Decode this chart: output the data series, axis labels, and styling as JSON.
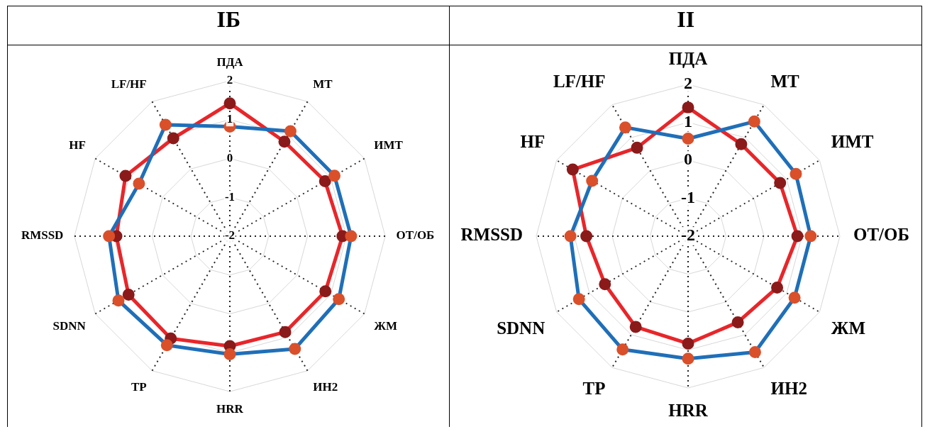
{
  "chart_data": [
    {
      "type": "radar",
      "title": "IБ",
      "categories": [
        "ПДА",
        "МТ",
        "ИМТ",
        "ОТ/ОБ",
        "ЖМ",
        "ИН2",
        "HRR",
        "ТР",
        "SDNN",
        "RMSSD",
        "HF",
        "LF/HF"
      ],
      "ylim": [
        -2,
        2
      ],
      "yticks": [
        -2,
        -1,
        0,
        1,
        2
      ],
      "grid": true,
      "legend": false,
      "marker": "circle",
      "series": [
        {
          "color": "#1f6fb8",
          "colors": [
            "#d9502a",
            "#d9502a",
            "#d9502a",
            "#d9502a",
            "#d9502a",
            "#d9502a",
            "#d9502a",
            "#d9502a",
            "#d9502a",
            "#d9502a",
            "#d9502a",
            "#d9502a"
          ],
          "values": [
            0.82,
            1.12,
            1.11,
            1.12,
            1.24,
            1.35,
            1.04,
            1.24,
            1.31,
            1.11,
            0.7,
            1.31
          ]
        },
        {
          "color": "#e8262a",
          "colors": [
            "#8b1a1a",
            "#8b1a1a",
            "#8b1a1a",
            "#8b1a1a",
            "#8b1a1a",
            "#8b1a1a",
            "#8b1a1a",
            "#8b1a1a",
            "#8b1a1a",
            "#8b1a1a",
            "#8b1a1a",
            "#8b1a1a"
          ],
          "values": [
            1.42,
            0.81,
            0.83,
            0.9,
            0.84,
            0.85,
            0.83,
            1.04,
            1.01,
            0.92,
            1.1,
            0.91
          ]
        }
      ]
    },
    {
      "type": "radar",
      "title": "II",
      "categories": [
        "ПДА",
        "МТ",
        "ИМТ",
        "ОТ/ОБ",
        "ЖМ",
        "ИН2",
        "HRR",
        "ТР",
        "SDNN",
        "RMSSD",
        "HF",
        "LF/HF"
      ],
      "ylim": [
        -2,
        2
      ],
      "yticks": [
        -2,
        -1,
        0,
        1,
        2
      ],
      "grid": true,
      "legend": false,
      "marker": "circle",
      "series": [
        {
          "color": "#1f6fb8",
          "colors": [
            "#d9502a",
            "#d9502a",
            "#d9502a",
            "#d9502a",
            "#d9502a",
            "#d9502a",
            "#d9502a",
            "#d9502a",
            "#d9502a",
            "#d9502a",
            "#d9502a",
            "#d9502a"
          ],
          "values": [
            0.57,
            1.49,
            1.28,
            1.23,
            1.24,
            1.53,
            1.23,
            1.45,
            1.32,
            1.1,
            0.92,
            1.31
          ]
        },
        {
          "color": "#e8262a",
          "colors": [
            "#8b1a1a",
            "#8b1a1a",
            "#8b1a1a",
            "#8b1a1a",
            "#8b1a1a",
            "#8b1a1a",
            "#8b1a1a",
            "#8b1a1a",
            "#8b1a1a",
            "#8b1a1a",
            "#8b1a1a",
            "#8b1a1a"
          ],
          "values": [
            1.39,
            0.8,
            0.8,
            0.88,
            0.71,
            0.62,
            0.83,
            0.76,
            0.53,
            0.68,
            1.51,
            0.69
          ]
        }
      ]
    }
  ]
}
